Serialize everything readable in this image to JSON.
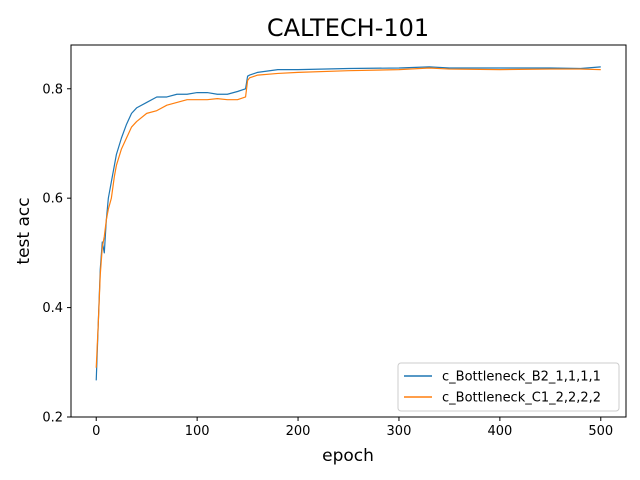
{
  "chart_data": {
    "type": "line",
    "title": "CALTECH-101",
    "xlabel": "epoch",
    "ylabel": "test acc",
    "xlim": [
      -25,
      525
    ],
    "ylim": [
      0.2,
      0.88
    ],
    "xticks": [
      0,
      100,
      200,
      300,
      400,
      500
    ],
    "xtick_labels": [
      "0",
      "100",
      "200",
      "300",
      "400",
      "500"
    ],
    "yticks": [
      0.2,
      0.4,
      0.6,
      0.8
    ],
    "ytick_labels": [
      "0.2",
      "0.4",
      "0.6",
      "0.8"
    ],
    "grid": false,
    "legend_position": "lower-right",
    "series": [
      {
        "name": "c_Bottleneck_B2_1,1,1,1",
        "color": "#1f77b4",
        "x": [
          0,
          2,
          4,
          6,
          8,
          10,
          12,
          15,
          18,
          20,
          25,
          30,
          35,
          40,
          50,
          60,
          70,
          80,
          90,
          100,
          110,
          120,
          130,
          140,
          148,
          150,
          152,
          160,
          180,
          200,
          250,
          300,
          330,
          350,
          400,
          450,
          480,
          500
        ],
        "y": [
          0.267,
          0.37,
          0.47,
          0.52,
          0.5,
          0.56,
          0.6,
          0.63,
          0.66,
          0.68,
          0.71,
          0.735,
          0.755,
          0.765,
          0.775,
          0.785,
          0.785,
          0.79,
          0.79,
          0.793,
          0.793,
          0.79,
          0.79,
          0.795,
          0.8,
          0.823,
          0.825,
          0.83,
          0.835,
          0.835,
          0.837,
          0.838,
          0.84,
          0.838,
          0.838,
          0.838,
          0.837,
          0.84
        ]
      },
      {
        "name": "c_Bottleneck_C1_2,2,2,2",
        "color": "#ff7f0e",
        "x": [
          0,
          2,
          4,
          6,
          8,
          10,
          12,
          15,
          18,
          20,
          25,
          30,
          35,
          40,
          50,
          60,
          70,
          80,
          90,
          100,
          110,
          120,
          130,
          140,
          148,
          150,
          152,
          160,
          180,
          200,
          250,
          300,
          330,
          350,
          400,
          450,
          480,
          500
        ],
        "y": [
          0.29,
          0.37,
          0.46,
          0.51,
          0.53,
          0.56,
          0.58,
          0.6,
          0.64,
          0.66,
          0.69,
          0.71,
          0.73,
          0.74,
          0.755,
          0.76,
          0.77,
          0.775,
          0.78,
          0.78,
          0.78,
          0.782,
          0.78,
          0.78,
          0.785,
          0.815,
          0.82,
          0.825,
          0.828,
          0.83,
          0.833,
          0.835,
          0.838,
          0.836,
          0.835,
          0.836,
          0.836,
          0.835
        ]
      }
    ]
  }
}
